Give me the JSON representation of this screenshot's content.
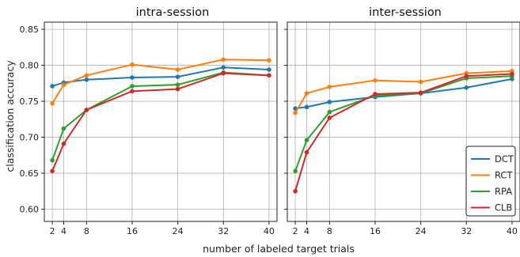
{
  "chart_data": [
    {
      "type": "line",
      "title": "intra-session",
      "xlabel": "number of labeled target trials",
      "ylabel": "classification accuracy",
      "x": [
        2,
        4,
        8,
        16,
        24,
        32,
        40
      ],
      "xticks": [
        "2",
        "4",
        "8",
        "16",
        "24",
        "32",
        "40"
      ],
      "yticks": [
        "0.60",
        "0.65",
        "0.70",
        "0.75",
        "0.80",
        "0.85"
      ],
      "ylim": [
        0.583,
        0.86
      ],
      "xlim": [
        0.6,
        41.4
      ],
      "grid": true,
      "series": [
        {
          "name": "DCT",
          "color": "#1f77b4",
          "values": [
            0.771,
            0.776,
            0.78,
            0.783,
            0.784,
            0.797,
            0.794
          ]
        },
        {
          "name": "RCT",
          "color": "#ff7f0e",
          "values": [
            0.747,
            0.773,
            0.786,
            0.801,
            0.794,
            0.808,
            0.807
          ]
        },
        {
          "name": "RPA",
          "color": "#2ca02c",
          "values": [
            0.668,
            0.712,
            0.738,
            0.771,
            0.773,
            0.79,
            0.786
          ]
        },
        {
          "name": "CLB",
          "color": "#d62728",
          "values": [
            0.653,
            0.691,
            0.738,
            0.764,
            0.767,
            0.789,
            0.786
          ]
        }
      ]
    },
    {
      "type": "line",
      "title": "inter-session",
      "xlabel": "number of labeled target trials",
      "x": [
        2,
        4,
        8,
        16,
        24,
        32,
        40
      ],
      "xticks": [
        "2",
        "4",
        "8",
        "16",
        "24",
        "32",
        "40"
      ],
      "ylim": [
        0.583,
        0.86
      ],
      "xlim": [
        0.6,
        41.4
      ],
      "grid": true,
      "legend": {
        "placement": "lower-right",
        "entries": [
          "DCT",
          "RCT",
          "RPA",
          "CLB"
        ]
      },
      "series": [
        {
          "name": "DCT",
          "color": "#1f77b4",
          "values": [
            0.74,
            0.742,
            0.749,
            0.756,
            0.761,
            0.769,
            0.781
          ]
        },
        {
          "name": "RCT",
          "color": "#ff7f0e",
          "values": [
            0.734,
            0.761,
            0.77,
            0.779,
            0.777,
            0.789,
            0.792
          ]
        },
        {
          "name": "RPA",
          "color": "#2ca02c",
          "values": [
            0.653,
            0.696,
            0.735,
            0.758,
            0.761,
            0.782,
            0.785
          ]
        },
        {
          "name": "CLB",
          "color": "#d62728",
          "values": [
            0.625,
            0.679,
            0.727,
            0.76,
            0.762,
            0.785,
            0.788
          ]
        }
      ]
    }
  ]
}
